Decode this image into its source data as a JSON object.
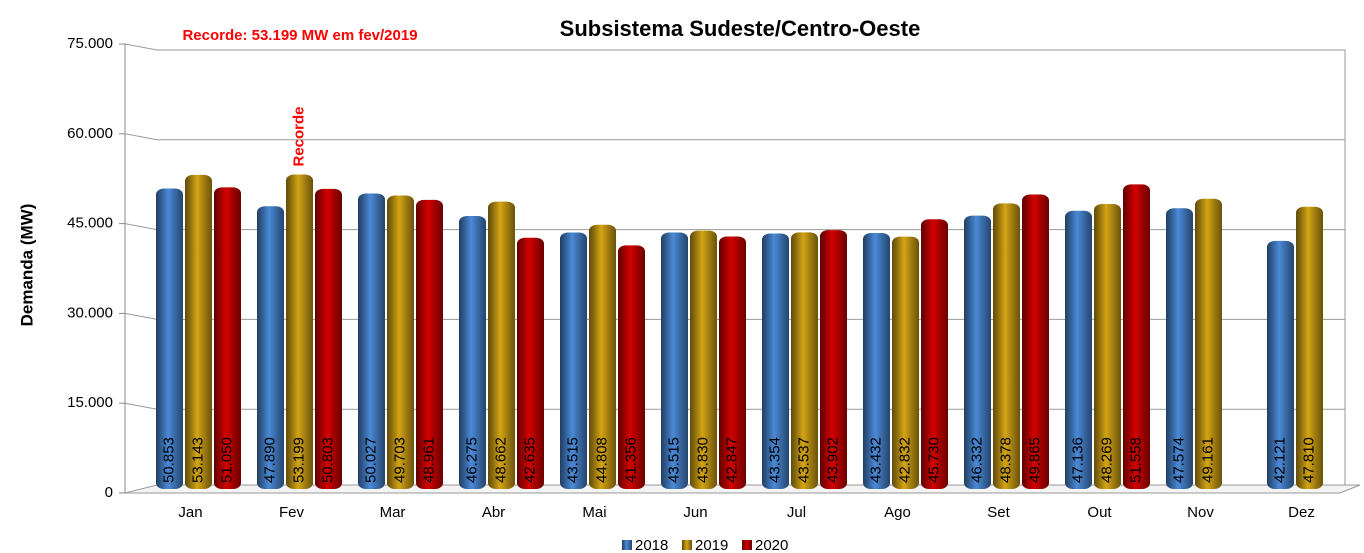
{
  "chart_data": {
    "type": "bar",
    "title": "Subsistema Sudeste/Centro-Oeste",
    "y_label": "Demanda (MW)",
    "annotations": [
      "Recorde: 53.199 MW em fev/2019",
      "Recorde"
    ],
    "categories": [
      "Jan",
      "Fev",
      "Mar",
      "Abr",
      "Mai",
      "Jun",
      "Jul",
      "Ago",
      "Set",
      "Out",
      "Nov",
      "Dez"
    ],
    "series": [
      {
        "name": "2018",
        "color": "#4a8ad8",
        "values": [
          50853,
          47890,
          50027,
          46275,
          43515,
          43515,
          43354,
          43432,
          46332,
          47136,
          47574,
          42121
        ],
        "value_labels": [
          "50.853",
          "47.890",
          "50.027",
          "46.275",
          "43.515",
          "43.515",
          "43.354",
          "43.432",
          "46.332",
          "47.136",
          "47.574",
          "42.121"
        ]
      },
      {
        "name": "2019",
        "color": "#d4a514",
        "values": [
          53143,
          53199,
          49703,
          48662,
          44808,
          43830,
          43537,
          42832,
          48378,
          48269,
          49161,
          47810
        ],
        "value_labels": [
          "53.143",
          "53.199",
          "49.703",
          "48.662",
          "44.808",
          "43.830",
          "43.537",
          "42.832",
          "48.378",
          "48.269",
          "49.161",
          "47.810"
        ]
      },
      {
        "name": "2020",
        "color": "#d40000",
        "values": [
          51050,
          50803,
          48961,
          42635,
          41356,
          42847,
          43902,
          45730,
          49865,
          51558,
          null,
          null
        ],
        "value_labels": [
          "51.050",
          "50.803",
          "48.961",
          "42.635",
          "41.356",
          "42.847",
          "43.902",
          "45.730",
          "49.865",
          "51.558",
          null,
          null
        ]
      }
    ],
    "ylim": [
      0,
      75000
    ],
    "yticks": [
      0,
      {
        "value": 15000,
        "label": "15.000"
      },
      {
        "value": 30000,
        "label": "30.000"
      },
      {
        "value": 45000,
        "label": "45.000"
      },
      {
        "value": 60000,
        "label": "60.000"
      },
      {
        "value": 75000,
        "label": "75.000"
      }
    ],
    "grid": true
  }
}
